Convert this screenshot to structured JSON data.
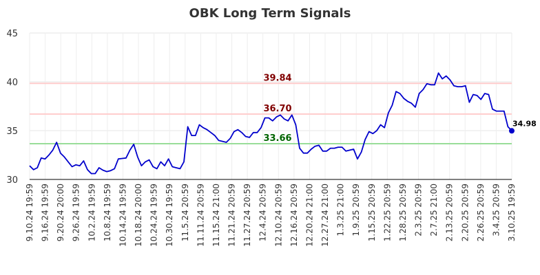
{
  "chart_data": {
    "type": "line",
    "title": "OBK Long Term Signals",
    "xlabel": "",
    "ylabel": "",
    "ylim": [
      30,
      45
    ],
    "y_ticks": [
      30,
      35,
      40,
      45
    ],
    "grid": true,
    "line_color": "#0000cc",
    "x_tick_labels": [
      "9.10.24 19:59",
      "9.16.24 19:59",
      "9.20.24 20:00",
      "9.26.24 19:59",
      "10.2.24 19:59",
      "10.8.24 19:59",
      "10.14.24 19:59",
      "10.18.24 20:00",
      "10.24.24 19:59",
      "10.30.24 19:59",
      "11.5.24 20:59",
      "11.11.24 20:59",
      "11.15.24 21:00",
      "11.21.24 20:59",
      "11.27.24 20:59",
      "12.4.24 20:59",
      "12.10.24 20:59",
      "12.16.24 20:59",
      "12.20.24 21:00",
      "12.27.24 21:00",
      "1.3.25 21:00",
      "1.9.25 20:59",
      "1.15.25 20:59",
      "1.22.25 20:59",
      "1.28.25 20:59",
      "2.3.25 20:59",
      "2.7.25 21:00",
      "2.13.25 20:59",
      "2.20.25 20:59",
      "2.26.25 20:59",
      "3.4.25 20:59",
      "3.10.25 19:59"
    ],
    "values": [
      31.4,
      31.0,
      31.2,
      32.2,
      32.1,
      32.5,
      33.0,
      33.8,
      32.7,
      32.3,
      31.8,
      31.3,
      31.5,
      31.4,
      31.9,
      31.0,
      30.6,
      30.6,
      31.2,
      30.95,
      30.8,
      30.9,
      31.1,
      32.1,
      32.15,
      32.2,
      33.0,
      33.6,
      32.3,
      31.4,
      31.8,
      32.0,
      31.3,
      31.1,
      31.8,
      31.4,
      32.1,
      31.3,
      31.2,
      31.1,
      31.8,
      35.4,
      34.5,
      34.5,
      35.6,
      35.3,
      35.1,
      34.8,
      34.5,
      34.0,
      33.9,
      33.8,
      34.2,
      34.9,
      35.1,
      34.8,
      34.4,
      34.3,
      34.8,
      34.8,
      35.3,
      36.3,
      36.3,
      36.0,
      36.4,
      36.6,
      36.2,
      36.0,
      36.6,
      35.6,
      33.2,
      32.7,
      32.7,
      33.1,
      33.4,
      33.5,
      32.9,
      32.9,
      33.2,
      33.2,
      33.3,
      33.3,
      32.9,
      33.0,
      33.1,
      32.1,
      32.8,
      34.1,
      34.9,
      34.7,
      35.0,
      35.6,
      35.3,
      36.8,
      37.6,
      39.0,
      38.8,
      38.3,
      38.0,
      37.8,
      37.4,
      38.8,
      39.2,
      39.8,
      39.7,
      39.7,
      40.9,
      40.3,
      40.6,
      40.2,
      39.6,
      39.5,
      39.5,
      39.6,
      37.9,
      38.7,
      38.6,
      38.2,
      38.8,
      38.7,
      37.2,
      37.0,
      37.0,
      37.0,
      35.4,
      34.98
    ],
    "levels": [
      {
        "value": 39.84,
        "label": "39.84",
        "line_color": "#ffcccc",
        "label_color": "#800000"
      },
      {
        "value": 36.7,
        "label": "36.70",
        "line_color": "#ffcccc",
        "label_color": "#800000"
      },
      {
        "value": 33.66,
        "label": "33.66",
        "line_color": "#99dd99",
        "label_color": "#006400"
      }
    ],
    "last_value_label": "34.98"
  }
}
